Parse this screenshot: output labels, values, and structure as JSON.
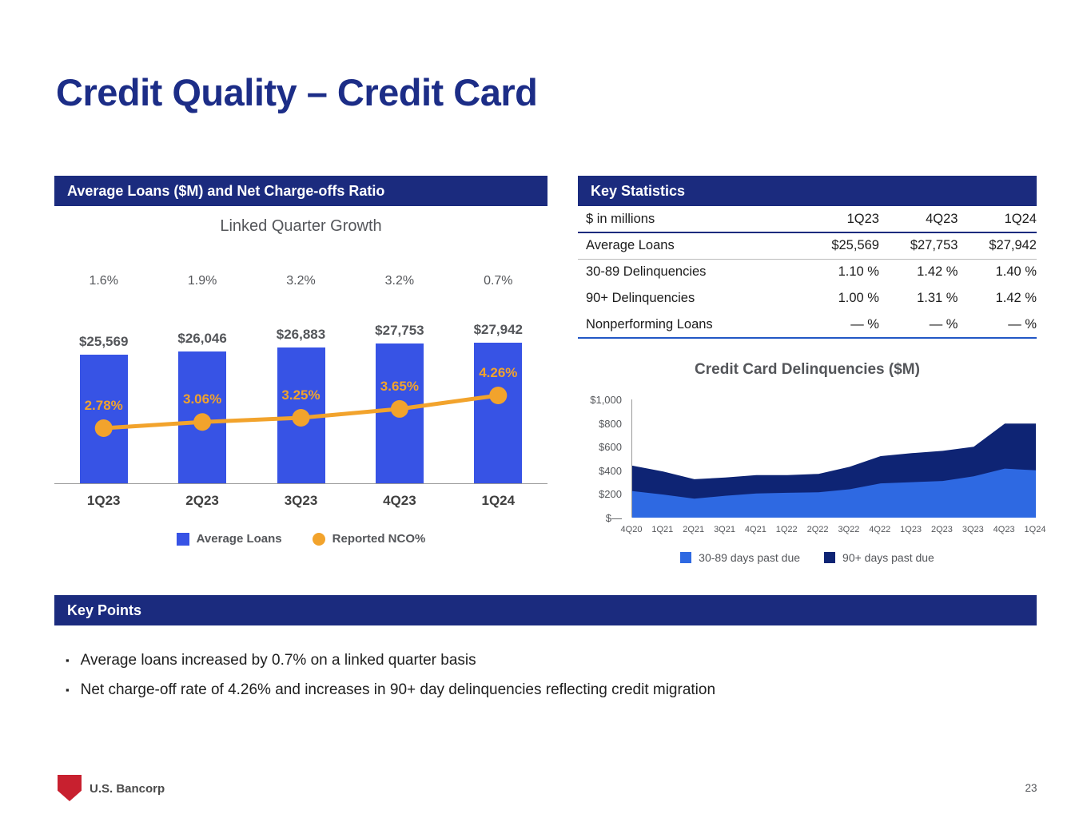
{
  "slide": {
    "title": "Credit Quality – Credit Card",
    "page_number": "23",
    "brand": "U.S. Bancorp"
  },
  "colors": {
    "navy_header": "#1b2b7e",
    "title_navy": "#1c2d87",
    "bar_blue": "#3753e5",
    "area_light_blue": "#2e69e2",
    "area_dark_navy": "#0e2474",
    "nco_orange": "#F2A32C",
    "brand_red": "#c8202f"
  },
  "left_panel": {
    "header": "Average Loans ($M) and Net Charge-offs Ratio",
    "subtitle": "Linked Quarter Growth",
    "legend": [
      {
        "label": "Average Loans",
        "shape": "square",
        "color": "#3753e5"
      },
      {
        "label": "Reported NCO%",
        "shape": "circle",
        "color": "#F2A32C"
      }
    ]
  },
  "key_statistics": {
    "header": "Key Statistics",
    "unit_label": "$ in millions",
    "columns": [
      "1Q23",
      "4Q23",
      "1Q24"
    ],
    "rows": [
      {
        "label": "Average Loans",
        "values": [
          "$25,569",
          "$27,753",
          "$27,942"
        ]
      },
      {
        "label": "30-89 Delinquencies",
        "values": [
          "1.10 %",
          "1.42 %",
          "1.40 %"
        ]
      },
      {
        "label": "90+ Delinquencies",
        "values": [
          "1.00 %",
          "1.31 %",
          "1.42 %"
        ]
      },
      {
        "label": "Nonperforming Loans",
        "values": [
          "— %",
          "— %",
          "— %"
        ]
      }
    ]
  },
  "chart_data": [
    {
      "id": "avg_loans_nco",
      "type": "bar",
      "title": "Average Loans ($M) and Net Charge-offs Ratio",
      "subtitle": "Linked Quarter Growth",
      "categories": [
        "1Q23",
        "2Q23",
        "3Q23",
        "4Q23",
        "1Q24"
      ],
      "growth_labels": [
        "1.6%",
        "1.9%",
        "3.2%",
        "3.2%",
        "0.7%"
      ],
      "series": [
        {
          "name": "Average Loans",
          "type": "bar",
          "color": "#3753e5",
          "values": [
            25569,
            26046,
            26883,
            27753,
            27942
          ],
          "labels": [
            "$25,569",
            "$26,046",
            "$26,883",
            "$27,753",
            "$27,942"
          ]
        },
        {
          "name": "Reported NCO%",
          "type": "line",
          "color": "#F2A32C",
          "values": [
            2.78,
            3.06,
            3.25,
            3.65,
            4.26
          ],
          "labels": [
            "2.78%",
            "3.06%",
            "3.25%",
            "3.65%",
            "4.26%"
          ]
        }
      ],
      "legend_position": "bottom",
      "grid": false
    },
    {
      "id": "cc_delinquencies",
      "type": "area",
      "title": "Credit Card Delinquencies ($M)",
      "categories": [
        "4Q20",
        "1Q21",
        "2Q21",
        "3Q21",
        "4Q21",
        "1Q22",
        "2Q22",
        "3Q22",
        "4Q22",
        "1Q23",
        "2Q23",
        "3Q23",
        "4Q23",
        "1Q24"
      ],
      "series": [
        {
          "name": "30-89 days past due",
          "color": "#2e69e2",
          "values": [
            225,
            195,
            160,
            185,
            205,
            210,
            215,
            240,
            290,
            300,
            310,
            350,
            415,
            400
          ]
        },
        {
          "name": "90+ days past due",
          "color": "#0e2474",
          "values": [
            215,
            195,
            165,
            155,
            155,
            150,
            155,
            190,
            230,
            245,
            255,
            250,
            380,
            395
          ]
        }
      ],
      "ylim": [
        0,
        1000
      ],
      "ytick_labels": [
        "$1,000",
        "$800",
        "$600",
        "$400",
        "$200",
        "$—"
      ],
      "legend_position": "bottom",
      "grid": false,
      "stacked": true
    }
  ],
  "key_points": {
    "header": "Key Points",
    "bullet_marker": "▪",
    "bullets": [
      "Average loans increased by 0.7% on a linked quarter basis",
      "Net charge-off rate of 4.26% and increases in 90+ day delinquencies reflecting credit migration"
    ]
  }
}
